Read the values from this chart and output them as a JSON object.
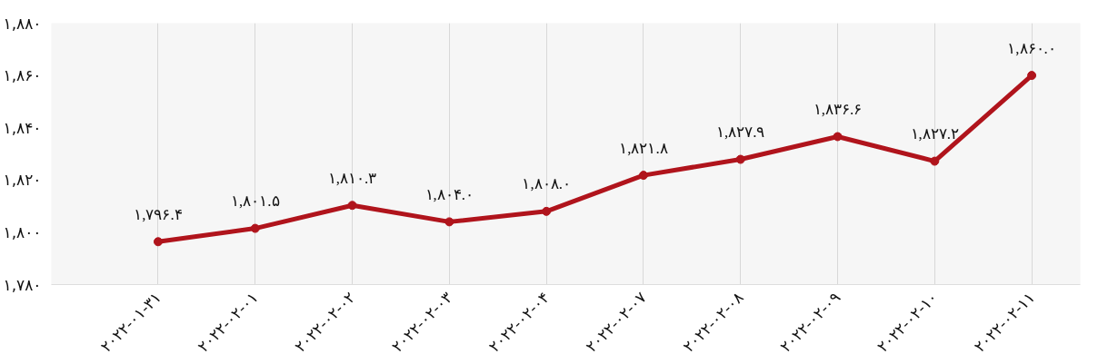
{
  "chart_data": {
    "type": "line",
    "categories": [
      "۲۰۲۲-۰۱-۳۱",
      "۲۰۲۲-۰۲-۰۱",
      "۲۰۲۲-۰۲-۰۲",
      "۲۰۲۲-۰۲-۰۳",
      "۲۰۲۲-۰۲-۰۴",
      "۲۰۲۲-۰۲-۰۷",
      "۲۰۲۲-۰۲-۰۸",
      "۲۰۲۲-۰۲-۰۹",
      "۲۰۲۲-۰۲-۱۰",
      "۲۰۲۲-۰۲-۱۱"
    ],
    "series": [
      {
        "color": "#b0141c",
        "values": [
          1796.4,
          1801.5,
          1810.3,
          1804.0,
          1808.0,
          1821.8,
          1827.9,
          1836.6,
          1827.2,
          1860.0
        ],
        "value_labels": [
          "۱,۷۹۶.۴",
          "۱,۸۰۱.۵",
          "۱,۸۱۰.۳",
          "۱,۸۰۴.۰",
          "۱,۸۰۸.۰",
          "۱,۸۲۱.۸",
          "۱,۸۲۷.۹",
          "۱,۸۳۶.۶",
          "۱,۸۲۷.۲",
          "۱,۸۶۰.۰"
        ]
      }
    ],
    "ylim": [
      1780,
      1880
    ],
    "yticks": [
      {
        "value": 1780,
        "label": "۱,۷۸۰"
      },
      {
        "value": 1800,
        "label": "۱,۸۰۰"
      },
      {
        "value": 1820,
        "label": "۱,۸۲۰"
      },
      {
        "value": 1840,
        "label": "۱,۸۴۰"
      },
      {
        "value": 1860,
        "label": "۱,۸۶۰"
      },
      {
        "value": 1880,
        "label": "۱,۸۸۰"
      }
    ],
    "grid": "x",
    "marker": "circle",
    "line_style": "solid"
  }
}
